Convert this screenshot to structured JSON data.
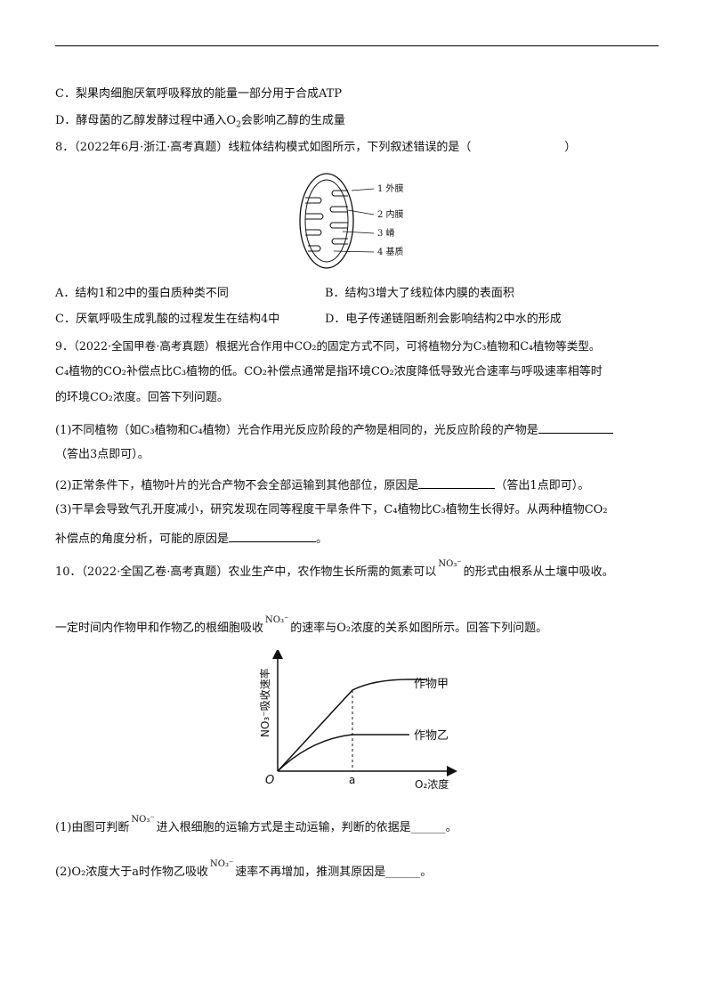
{
  "q7": {
    "opt_c": "C．梨果肉细胞厌氧呼吸释放的能量一部分用于合成ATP",
    "opt_d_pre": "D．酵母菌的乙醇发酵过程中通入O",
    "opt_d_sub": "2",
    "opt_d_post": "会影响乙醇的生成量"
  },
  "q8": {
    "stem": "8．（2022年6月·浙江·高考真题）线粒体结构模式如图所示，下列叙述错误的是（",
    "stem_close": "）",
    "labels": [
      "1 外膜",
      "2 内膜",
      "3 嵴",
      "4 基质"
    ],
    "options": [
      "A．结构1和2中的蛋白质种类不同",
      "B．结构3增大了线粒体内膜的表面积",
      "C．厌氧呼吸生成乳酸的过程发生在结构4中",
      "D．电子传递链阻断剂会影响结构2中水的形成"
    ]
  },
  "q9": {
    "line1": "9．（2022·全国甲卷·高考真题）根据光合作用中CO₂的固定方式不同，可将植物分为C₃植物和C₄植物等类型。",
    "line2": "C₄植物的CO₂补偿点比C₃植物的低。CO₂补偿点通常是指环境CO₂浓度降低导致光合速率与呼吸速率相等时",
    "line3": "的环境CO₂浓度。回答下列问题。",
    "p1a": "(1)不同植物（如C₃植物和C₄植物）光合作用光反应阶段的产物是相同的，光反应阶段的产物是",
    "p1b": "（答出3点即可）。",
    "p2a": "(2)正常条件下，植物叶片的光合产物不会全部运输到其他部位，原因是",
    "p2b": "（答出1点即可）。",
    "p3a": "(3)干旱会导致气孔开度减小，研究发现在同等程度干旱条件下，C₄植物比C₃植物生长得好。从两种植物CO₂",
    "p3b": "补偿点的角度分析，可能的原因是",
    "p3c": "。"
  },
  "q10": {
    "l1a": "10．（2022·全国乙卷·高考真题）农业生产中，农作物生长所需的氮素可以",
    "no3": "NO₃⁻",
    "l1b": "的形式由根系从土壤中吸收。",
    "l2a": "一定时间内作物甲和作物乙的根细胞吸收",
    "l2b": "的速率与O₂浓度的关系如图所示。回答下列问题。",
    "p1a": "(1)由图可判断",
    "p1b": "进入根细胞的运输方式是主动运输，判断的依据是______。",
    "p2a": "(2)O₂浓度大于a时作物乙吸收",
    "p2b": "速率不再增加，推测其原因是______。"
  },
  "chart_data": {
    "type": "line",
    "xlabel": "O₂浓度",
    "ylabel": "NO₃⁻吸收速率",
    "origin_label": "O",
    "x_tick": "a",
    "series": [
      {
        "name": "作物甲",
        "shape": "rises then plateaus at high level"
      },
      {
        "name": "作物乙",
        "shape": "rises then plateaus at low level"
      }
    ]
  }
}
